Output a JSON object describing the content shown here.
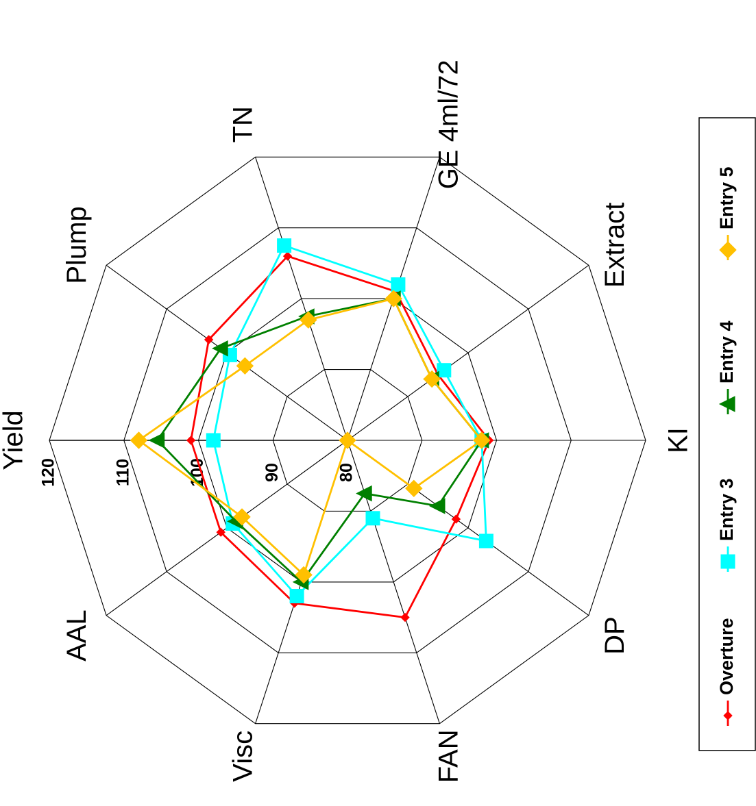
{
  "chart_data": {
    "type": "radar",
    "axes": [
      "Yield",
      "Plump",
      "TN",
      "GE 4ml/72",
      "Extract",
      "KI",
      "DP",
      "FAN",
      "Visc",
      "AAL"
    ],
    "rlim": [
      80,
      120
    ],
    "rticks": [
      80,
      90,
      100,
      110,
      120
    ],
    "grid": true,
    "legend_position": "right",
    "series": [
      {
        "name": "Overture",
        "color": "#ff0000",
        "marker": "diamond-small",
        "values": [
          101,
          103,
          106,
          101,
          95,
          99,
          98,
          105,
          103,
          101
        ]
      },
      {
        "name": "Entry 3",
        "color": "#00ffff",
        "marker": "square",
        "values": [
          98,
          99.5,
          107.5,
          102,
          96,
          98,
          103,
          91,
          102,
          99
        ]
      },
      {
        "name": "Entry 4",
        "color": "#008000",
        "marker": "triangle",
        "values": [
          105.5,
          101,
          97.5,
          100,
          94,
          98,
          95,
          87.5,
          100,
          98.5
        ]
      },
      {
        "name": "Entry 5",
        "color": "#ffc000",
        "marker": "diamond",
        "values": [
          108,
          97,
          97,
          100,
          94,
          98,
          91,
          80,
          99,
          97.5
        ]
      }
    ]
  }
}
